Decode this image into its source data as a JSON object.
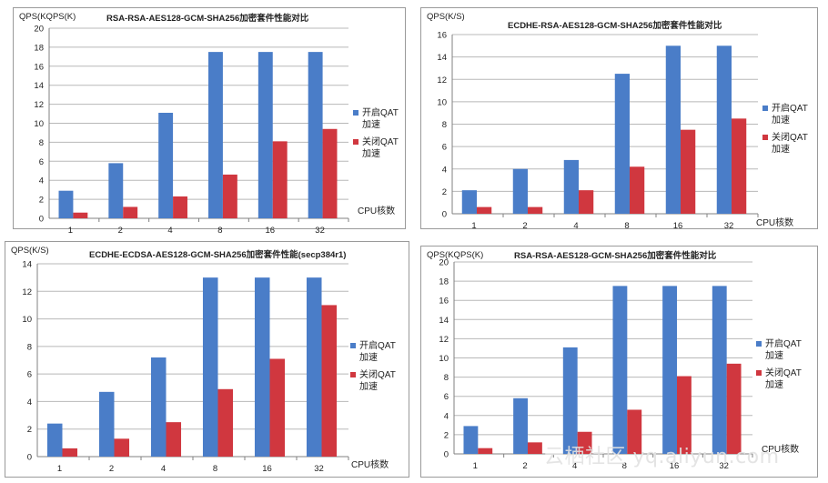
{
  "colors": {
    "series_on": "#4a7dc8",
    "series_off": "#d0373f"
  },
  "chart_data": [
    {
      "type": "bar",
      "title": "RSA-RSA-AES128-GCM-SHA256加密套件性能对比",
      "ylabel": "QPS(KQPS(K)",
      "xlabel": "CPU核数",
      "categories": [
        "1",
        "2",
        "4",
        "8",
        "16",
        "32"
      ],
      "ylim": [
        0,
        20
      ],
      "ytick_step": 2,
      "grid": true,
      "legend_position": "right",
      "series": [
        {
          "name": [
            "开启QAT",
            "加速"
          ],
          "values": [
            2.9,
            5.8,
            11.1,
            17.5,
            17.5,
            17.5
          ]
        },
        {
          "name": [
            "关闭QAT",
            "加速"
          ],
          "values": [
            0.6,
            1.2,
            2.3,
            4.6,
            8.1,
            9.4
          ]
        }
      ]
    },
    {
      "type": "bar",
      "title": "ECDHE-RSA-AES128-GCM-SHA256加密套件性能对比",
      "ylabel": "QPS(K/S)",
      "xlabel": "CPU核数",
      "categories": [
        "1",
        "2",
        "4",
        "8",
        "16",
        "32"
      ],
      "ylim": [
        0,
        16
      ],
      "ytick_step": 2,
      "grid": true,
      "legend_position": "right",
      "series": [
        {
          "name": [
            "开启QAT",
            "加速"
          ],
          "values": [
            2.1,
            4.0,
            4.8,
            12.5,
            15.0,
            15.0
          ]
        },
        {
          "name": [
            "关闭QAT",
            "加速"
          ],
          "values": [
            0.6,
            0.6,
            2.1,
            4.2,
            7.5,
            8.5
          ]
        }
      ]
    },
    {
      "type": "bar",
      "title": "ECDHE-ECDSA-AES128-GCM-SHA256加密套件性能(secp384r1)",
      "ylabel": "QPS(K/S)",
      "xlabel": "CPU核数",
      "categories": [
        "1",
        "2",
        "4",
        "8",
        "16",
        "32"
      ],
      "ylim": [
        0,
        14
      ],
      "ytick_step": 2,
      "grid": true,
      "legend_position": "right",
      "series": [
        {
          "name": [
            "开启QAT",
            "加速"
          ],
          "values": [
            2.4,
            4.7,
            7.2,
            13.0,
            13.0,
            13.0
          ]
        },
        {
          "name": [
            "关闭QAT",
            "加速"
          ],
          "values": [
            0.6,
            1.3,
            2.5,
            4.9,
            7.1,
            11.0
          ]
        }
      ]
    },
    {
      "type": "bar",
      "title": "RSA-RSA-AES128-GCM-SHA256加密套件性能对比",
      "ylabel": "QPS(KQPS(K)",
      "xlabel": "CPU核数",
      "categories": [
        "1",
        "2",
        "4",
        "8",
        "16",
        "32"
      ],
      "ylim": [
        0,
        20
      ],
      "ytick_step": 2,
      "grid": true,
      "legend_position": "right",
      "series": [
        {
          "name": [
            "开启QAT",
            "加速"
          ],
          "values": [
            2.9,
            5.8,
            11.1,
            17.5,
            17.5,
            17.5
          ]
        },
        {
          "name": [
            "关闭QAT",
            "加速"
          ],
          "values": [
            0.6,
            1.2,
            2.3,
            4.6,
            8.1,
            9.4
          ]
        }
      ]
    }
  ],
  "watermark": "云栖社区 yq.aliyun.com"
}
